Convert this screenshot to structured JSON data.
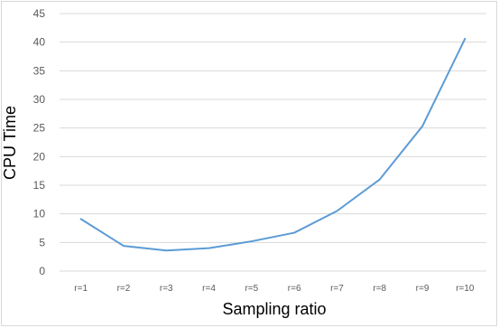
{
  "chart_data": {
    "type": "line",
    "title": "",
    "xlabel": "Sampling ratio",
    "ylabel": "CPU Time",
    "categories": [
      "r=1",
      "r=2",
      "r=3",
      "r=4",
      "r=5",
      "r=6",
      "r=7",
      "r=8",
      "r=9",
      "r=10"
    ],
    "series": [
      {
        "values": [
          9.1,
          4.4,
          3.6,
          4.0,
          5.2,
          6.7,
          10.5,
          16.0,
          25.3,
          40.6
        ]
      }
    ],
    "yticks": [
      "0",
      "5",
      "10",
      "15",
      "20",
      "25",
      "30",
      "35",
      "40",
      "45"
    ],
    "ylim": [
      0,
      45
    ],
    "grid": "horizontal",
    "legend": "none",
    "colors": {
      "line": "#5b9bd5",
      "grid": "#d9d9d9",
      "tick_text": "#595959"
    }
  }
}
